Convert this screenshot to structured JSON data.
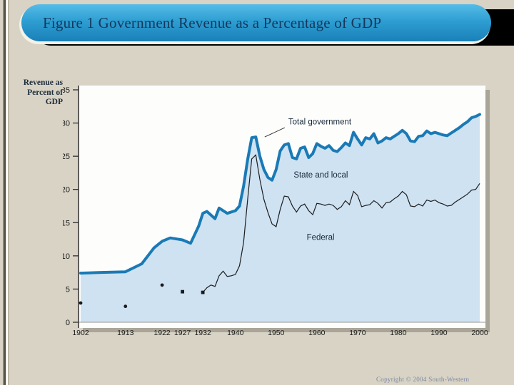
{
  "slide": {
    "title": "Figure 1 Government Revenue as a Percentage of GDP",
    "copyright": "Copyright © 2004  South-Western"
  },
  "colors": {
    "slide_bg": "#d8d3c5",
    "banner_text": "#14385c",
    "banner_shadow": "#000000",
    "plot_bg": "#fdfdfc",
    "plot_shadow": "#a9a699",
    "area_fill": "#cfe2f2",
    "total_line": "#1a7ab5",
    "federal_line": "#1c1c1c",
    "axis": "#222222",
    "label_text": "#16283a"
  },
  "chart_data": {
    "type": "area",
    "title": "Government Revenue as a Percentage of GDP",
    "y_axis_title": "Revenue as Percent of GDP",
    "y_axis_title_lines": [
      "Revenue as",
      "Percent of",
      "GDP"
    ],
    "xlabel": "",
    "ylabel": "Revenue as Percent of GDP",
    "ylim": [
      0,
      35
    ],
    "xlim": [
      1902,
      2000
    ],
    "grid": false,
    "legend_position": "inline-labels",
    "y_ticks": [
      0,
      5,
      10,
      15,
      20,
      25,
      30,
      35
    ],
    "x_ticks": [
      1902,
      1913,
      1922,
      1927,
      1932,
      1940,
      1950,
      1960,
      1970,
      1980,
      1990,
      2000
    ],
    "series": [
      {
        "name": "Total government",
        "points": [
          [
            1902,
            7.4
          ],
          [
            1907,
            7.5
          ],
          [
            1913,
            7.6
          ],
          [
            1917,
            8.8
          ],
          [
            1920,
            11.2
          ],
          [
            1922,
            12.2
          ],
          [
            1924,
            12.7
          ],
          [
            1927,
            12.4
          ],
          [
            1929,
            11.9
          ],
          [
            1931,
            14.5
          ],
          [
            1932,
            16.4
          ],
          [
            1933,
            16.7
          ],
          [
            1935,
            15.6
          ],
          [
            1936,
            17.2
          ],
          [
            1938,
            16.4
          ],
          [
            1940,
            16.8
          ],
          [
            1941,
            17.5
          ],
          [
            1942,
            20.5
          ],
          [
            1943,
            24.5
          ],
          [
            1944,
            27.8
          ],
          [
            1945,
            27.9
          ],
          [
            1946,
            25.0
          ],
          [
            1947,
            23.0
          ],
          [
            1948,
            21.8
          ],
          [
            1949,
            21.4
          ],
          [
            1950,
            23.0
          ],
          [
            1951,
            25.8
          ],
          [
            1952,
            26.7
          ],
          [
            1953,
            26.9
          ],
          [
            1954,
            24.8
          ],
          [
            1955,
            24.6
          ],
          [
            1956,
            26.2
          ],
          [
            1957,
            26.4
          ],
          [
            1958,
            24.8
          ],
          [
            1959,
            25.4
          ],
          [
            1960,
            26.9
          ],
          [
            1961,
            26.5
          ],
          [
            1962,
            26.2
          ],
          [
            1963,
            26.6
          ],
          [
            1964,
            25.9
          ],
          [
            1965,
            25.7
          ],
          [
            1966,
            26.3
          ],
          [
            1967,
            27.0
          ],
          [
            1968,
            26.6
          ],
          [
            1969,
            28.6
          ],
          [
            1970,
            27.6
          ],
          [
            1971,
            26.7
          ],
          [
            1972,
            27.8
          ],
          [
            1973,
            27.6
          ],
          [
            1974,
            28.4
          ],
          [
            1975,
            27.0
          ],
          [
            1976,
            27.3
          ],
          [
            1977,
            27.8
          ],
          [
            1978,
            27.6
          ],
          [
            1979,
            28.0
          ],
          [
            1980,
            28.4
          ],
          [
            1981,
            28.9
          ],
          [
            1982,
            28.4
          ],
          [
            1983,
            27.3
          ],
          [
            1984,
            27.2
          ],
          [
            1985,
            28.0
          ],
          [
            1986,
            28.1
          ],
          [
            1987,
            28.8
          ],
          [
            1988,
            28.4
          ],
          [
            1989,
            28.6
          ],
          [
            1990,
            28.4
          ],
          [
            1991,
            28.2
          ],
          [
            1992,
            28.1
          ],
          [
            1993,
            28.5
          ],
          [
            1994,
            28.9
          ],
          [
            1995,
            29.3
          ],
          [
            1996,
            29.8
          ],
          [
            1997,
            30.2
          ],
          [
            1998,
            30.8
          ],
          [
            1999,
            31.0
          ],
          [
            2000,
            31.3
          ]
        ]
      },
      {
        "name": "Federal",
        "points": [
          [
            1932,
            4.5
          ],
          [
            1933,
            5.2
          ],
          [
            1934,
            5.6
          ],
          [
            1935,
            5.4
          ],
          [
            1936,
            7.0
          ],
          [
            1937,
            7.7
          ],
          [
            1938,
            6.9
          ],
          [
            1939,
            7.0
          ],
          [
            1940,
            7.2
          ],
          [
            1941,
            8.5
          ],
          [
            1942,
            12.0
          ],
          [
            1943,
            18.5
          ],
          [
            1944,
            24.6
          ],
          [
            1945,
            25.2
          ],
          [
            1946,
            21.5
          ],
          [
            1947,
            18.5
          ],
          [
            1948,
            16.5
          ],
          [
            1949,
            14.8
          ],
          [
            1950,
            14.4
          ],
          [
            1951,
            17.0
          ],
          [
            1952,
            19.0
          ],
          [
            1953,
            18.9
          ],
          [
            1954,
            17.5
          ],
          [
            1955,
            16.6
          ],
          [
            1956,
            17.5
          ],
          [
            1957,
            17.8
          ],
          [
            1958,
            16.8
          ],
          [
            1959,
            16.2
          ],
          [
            1960,
            17.9
          ],
          [
            1961,
            17.8
          ],
          [
            1962,
            17.6
          ],
          [
            1963,
            17.8
          ],
          [
            1964,
            17.6
          ],
          [
            1965,
            17.0
          ],
          [
            1966,
            17.4
          ],
          [
            1967,
            18.3
          ],
          [
            1968,
            17.7
          ],
          [
            1969,
            19.7
          ],
          [
            1970,
            19.1
          ],
          [
            1971,
            17.4
          ],
          [
            1972,
            17.6
          ],
          [
            1973,
            17.7
          ],
          [
            1974,
            18.3
          ],
          [
            1975,
            17.9
          ],
          [
            1976,
            17.2
          ],
          [
            1977,
            18.0
          ],
          [
            1978,
            18.1
          ],
          [
            1979,
            18.6
          ],
          [
            1980,
            19.0
          ],
          [
            1981,
            19.7
          ],
          [
            1982,
            19.2
          ],
          [
            1983,
            17.5
          ],
          [
            1984,
            17.4
          ],
          [
            1985,
            17.8
          ],
          [
            1986,
            17.5
          ],
          [
            1987,
            18.4
          ],
          [
            1988,
            18.2
          ],
          [
            1989,
            18.4
          ],
          [
            1990,
            18.0
          ],
          [
            1991,
            17.8
          ],
          [
            1992,
            17.5
          ],
          [
            1993,
            17.6
          ],
          [
            1994,
            18.1
          ],
          [
            1995,
            18.5
          ],
          [
            1996,
            18.9
          ],
          [
            1997,
            19.3
          ],
          [
            1998,
            19.9
          ],
          [
            1999,
            20.0
          ],
          [
            2000,
            20.9
          ]
        ]
      }
    ],
    "early_federal_markers": {
      "circles": [
        [
          1902,
          2.9
        ],
        [
          1913,
          2.4
        ],
        [
          1922,
          5.6
        ]
      ],
      "squares": [
        [
          1927,
          4.6
        ],
        [
          1932,
          4.5
        ]
      ]
    },
    "region_labels_note": "area below Federal line = Federal; between Federal and Total = State and local",
    "annotations": [
      {
        "text": "Total government",
        "year": 1953,
        "value": 29.8,
        "leader": [
          [
            1952.1,
            29.3
          ],
          [
            1947.2,
            27.9
          ]
        ]
      },
      {
        "text": "State and local",
        "year": 1954.3,
        "value": 21.8
      },
      {
        "text": "Federal",
        "year": 1957.5,
        "value": 12.4
      }
    ]
  }
}
